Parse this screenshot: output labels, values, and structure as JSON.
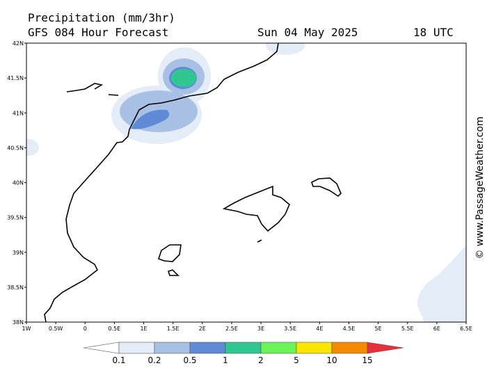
{
  "header": {
    "title": "Precipitation (mm/3hr)",
    "subtitle": "GFS 084 Hour Forecast",
    "date": "Sun 04 May 2025",
    "time": "18 UTC"
  },
  "map": {
    "lat_labels": [
      "42N",
      "41.5N",
      "41N",
      "40.5N",
      "40N",
      "39.5N",
      "39N",
      "38.5N",
      "38N"
    ],
    "lon_labels": [
      "1W",
      "0.5W",
      "0",
      "0.5E",
      "1E",
      "1.5E",
      "2E",
      "2.5E",
      "3E",
      "3.5E",
      "4E",
      "4.5E",
      "5E",
      "5.5E",
      "6E",
      "6.5E"
    ]
  },
  "colorbar": {
    "labels": [
      "0.1",
      "0.2",
      "0.5",
      "1",
      "2",
      "5",
      "10",
      "15"
    ],
    "colors": [
      "#ffffff",
      "#e4ecf8",
      "#a8c0e4",
      "#5f8ad6",
      "#2fc78f",
      "#6cf35a",
      "#f8e600",
      "#f58a00",
      "#e8303a"
    ]
  },
  "watermark": "© www.PassageWeather.com"
}
